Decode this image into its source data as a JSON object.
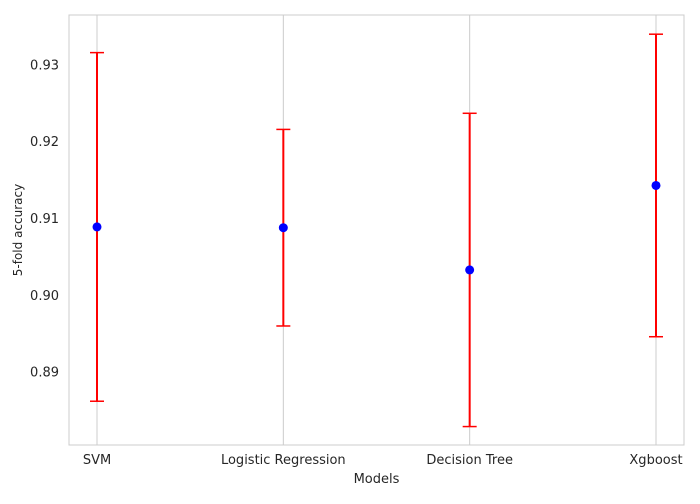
{
  "chart_data": {
    "type": "scatter",
    "subtype": "errorbar",
    "title": "",
    "xlabel": "Models",
    "ylabel": "5-fold accuracy",
    "categories": [
      "SVM",
      "Logistic Regression",
      "Decision Tree",
      "Xgboost"
    ],
    "series": [
      {
        "means": [
          0.9089,
          0.9088,
          0.9033,
          0.9143
        ],
        "lower": [
          0.8862,
          0.896,
          0.8829,
          0.8946
        ],
        "upper": [
          0.9316,
          0.9216,
          0.9237,
          0.934
        ]
      }
    ],
    "yticks": [
      0.89,
      0.9,
      0.91,
      0.92,
      0.93
    ],
    "ytick_labels": [
      "0.89",
      "0.90",
      "0.91",
      "0.92",
      "0.93"
    ],
    "ylim": [
      0.8805,
      0.9365
    ],
    "grid": "vertical-only",
    "legend": "none",
    "colors": {
      "marker": "#0000ff",
      "errorbar": "#ff0000",
      "grid": "#cccccc",
      "axes": "#cccccc",
      "text": "#262626"
    }
  }
}
